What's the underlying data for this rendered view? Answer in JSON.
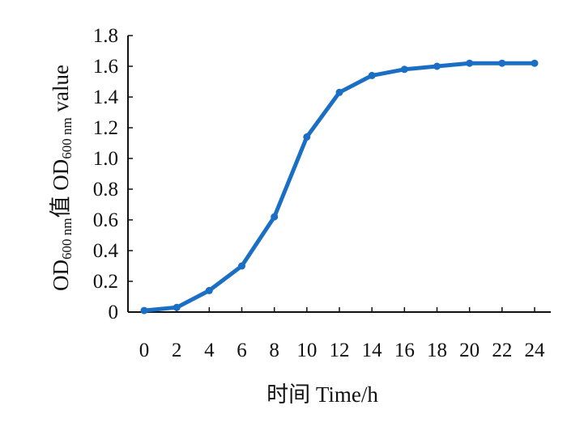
{
  "chart_data": {
    "type": "line",
    "title": "",
    "xlabel": "时间  Time/h",
    "ylabel": {
      "prefix": "OD",
      "sub": "600 nm",
      "suffix": "值  OD",
      "sub2": "600 nm",
      "suffix2": " value"
    },
    "x_ticks": [
      0,
      2,
      4,
      6,
      8,
      10,
      12,
      14,
      16,
      18,
      20,
      22,
      24
    ],
    "y_ticks": [
      "0",
      "0.2",
      "0.4",
      "0.6",
      "0.8",
      "1.0",
      "1.2",
      "1.4",
      "1.6",
      "1.8"
    ],
    "xlim": [
      0,
      24
    ],
    "ylim": [
      0,
      1.8
    ],
    "grid": false,
    "legend": "none",
    "series": [
      {
        "color": "#1a6fc4",
        "x": [
          0,
          2,
          4,
          6,
          8,
          10,
          12,
          14,
          16,
          18,
          20,
          22,
          24
        ],
        "y": [
          0.01,
          0.03,
          0.14,
          0.3,
          0.62,
          1.14,
          1.43,
          1.54,
          1.58,
          1.6,
          1.62,
          1.62,
          1.62
        ]
      }
    ]
  }
}
